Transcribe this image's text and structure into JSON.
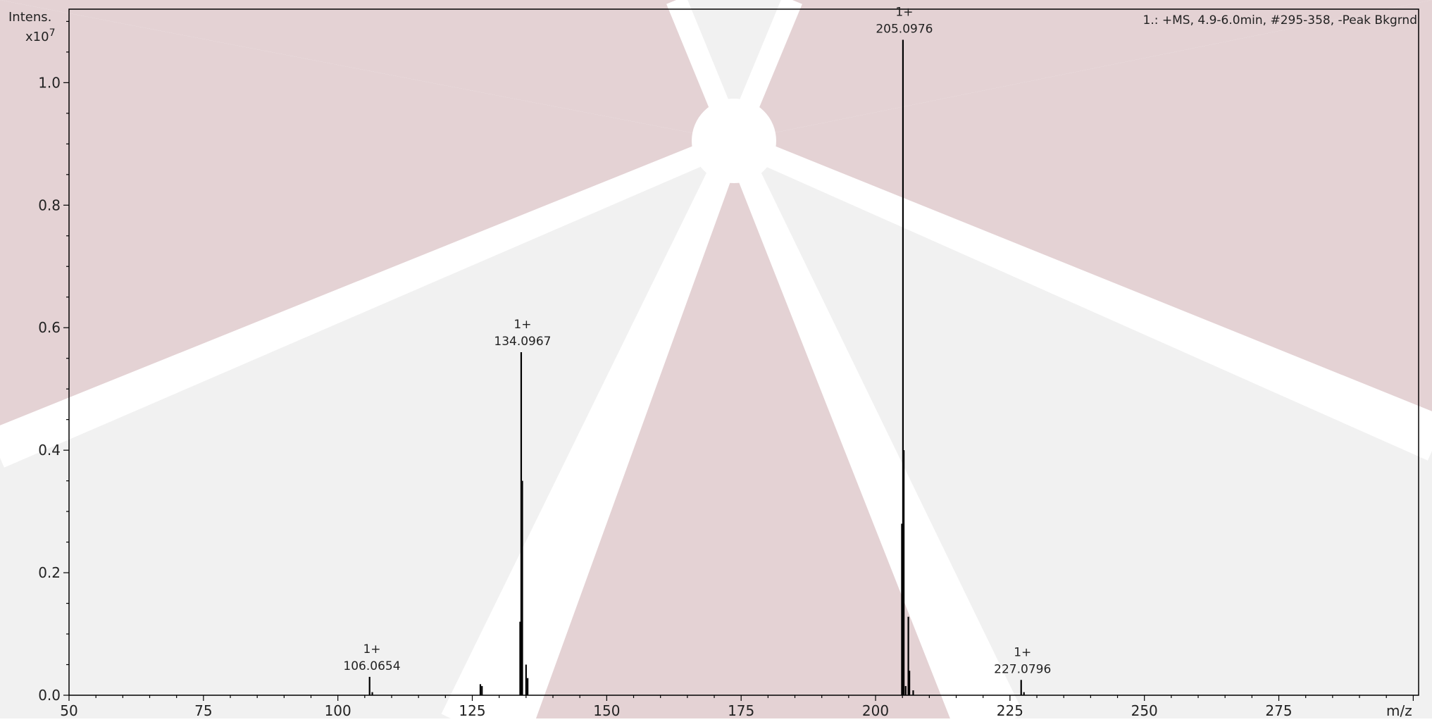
{
  "colors": {
    "background": "#ffffff",
    "watermark_red": "#e4d2d4",
    "watermark_grey": "#f1f1f1",
    "axis": "#000000",
    "peaks": "#000000"
  },
  "chart_data": {
    "type": "bar",
    "title": "",
    "scan_info": "1.: +MS, 4.9-6.0min, #295-358, -Peak Bkgrnd",
    "ylabel": "Intens.",
    "ylabel_scale": "x10",
    "ylabel_scale_exp": "7",
    "xlabel": "m/z",
    "xlim": [
      50,
      301
    ],
    "ylim": [
      0,
      1.12
    ],
    "x_ticks": [
      "50",
      "75",
      "100",
      "125",
      "150",
      "175",
      "200",
      "225",
      "250",
      "275"
    ],
    "x_tick_values": [
      50,
      75,
      100,
      125,
      150,
      175,
      200,
      225,
      250,
      275
    ],
    "y_ticks": [
      "0.0",
      "0.2",
      "0.4",
      "0.6",
      "0.8",
      "1.0"
    ],
    "y_tick_values": [
      0.0,
      0.2,
      0.4,
      0.6,
      0.8,
      1.0
    ],
    "grid": false,
    "legend": "none",
    "peaks": [
      {
        "mz": 105.9,
        "intensity": 0.03
      },
      {
        "mz": 106.4,
        "intensity": 0.005
      },
      {
        "mz": 126.5,
        "intensity": 0.018
      },
      {
        "mz": 126.8,
        "intensity": 0.015
      },
      {
        "mz": 133.9,
        "intensity": 0.12
      },
      {
        "mz": 134.0967,
        "intensity": 0.56
      },
      {
        "mz": 134.3,
        "intensity": 0.35
      },
      {
        "mz": 135.0,
        "intensity": 0.05
      },
      {
        "mz": 135.3,
        "intensity": 0.028
      },
      {
        "mz": 204.9,
        "intensity": 0.28
      },
      {
        "mz": 205.0976,
        "intensity": 1.07
      },
      {
        "mz": 205.25,
        "intensity": 0.4
      },
      {
        "mz": 205.6,
        "intensity": 0.015
      },
      {
        "mz": 206.1,
        "intensity": 0.128
      },
      {
        "mz": 206.3,
        "intensity": 0.04
      },
      {
        "mz": 207.0,
        "intensity": 0.008
      },
      {
        "mz": 227.0796,
        "intensity": 0.025
      },
      {
        "mz": 227.6,
        "intensity": 0.005
      }
    ],
    "annotations": [
      {
        "mz": 106.0654,
        "charge": "1+",
        "label": "106.0654",
        "intensity": 0.03
      },
      {
        "mz": 134.0967,
        "charge": "1+",
        "label": "134.0967",
        "intensity": 0.56
      },
      {
        "mz": 205.0976,
        "charge": "1+",
        "label": "205.0976",
        "intensity": 1.07
      },
      {
        "mz": 227.0796,
        "charge": "1+",
        "label": "227.0796",
        "intensity": 0.025
      }
    ]
  }
}
